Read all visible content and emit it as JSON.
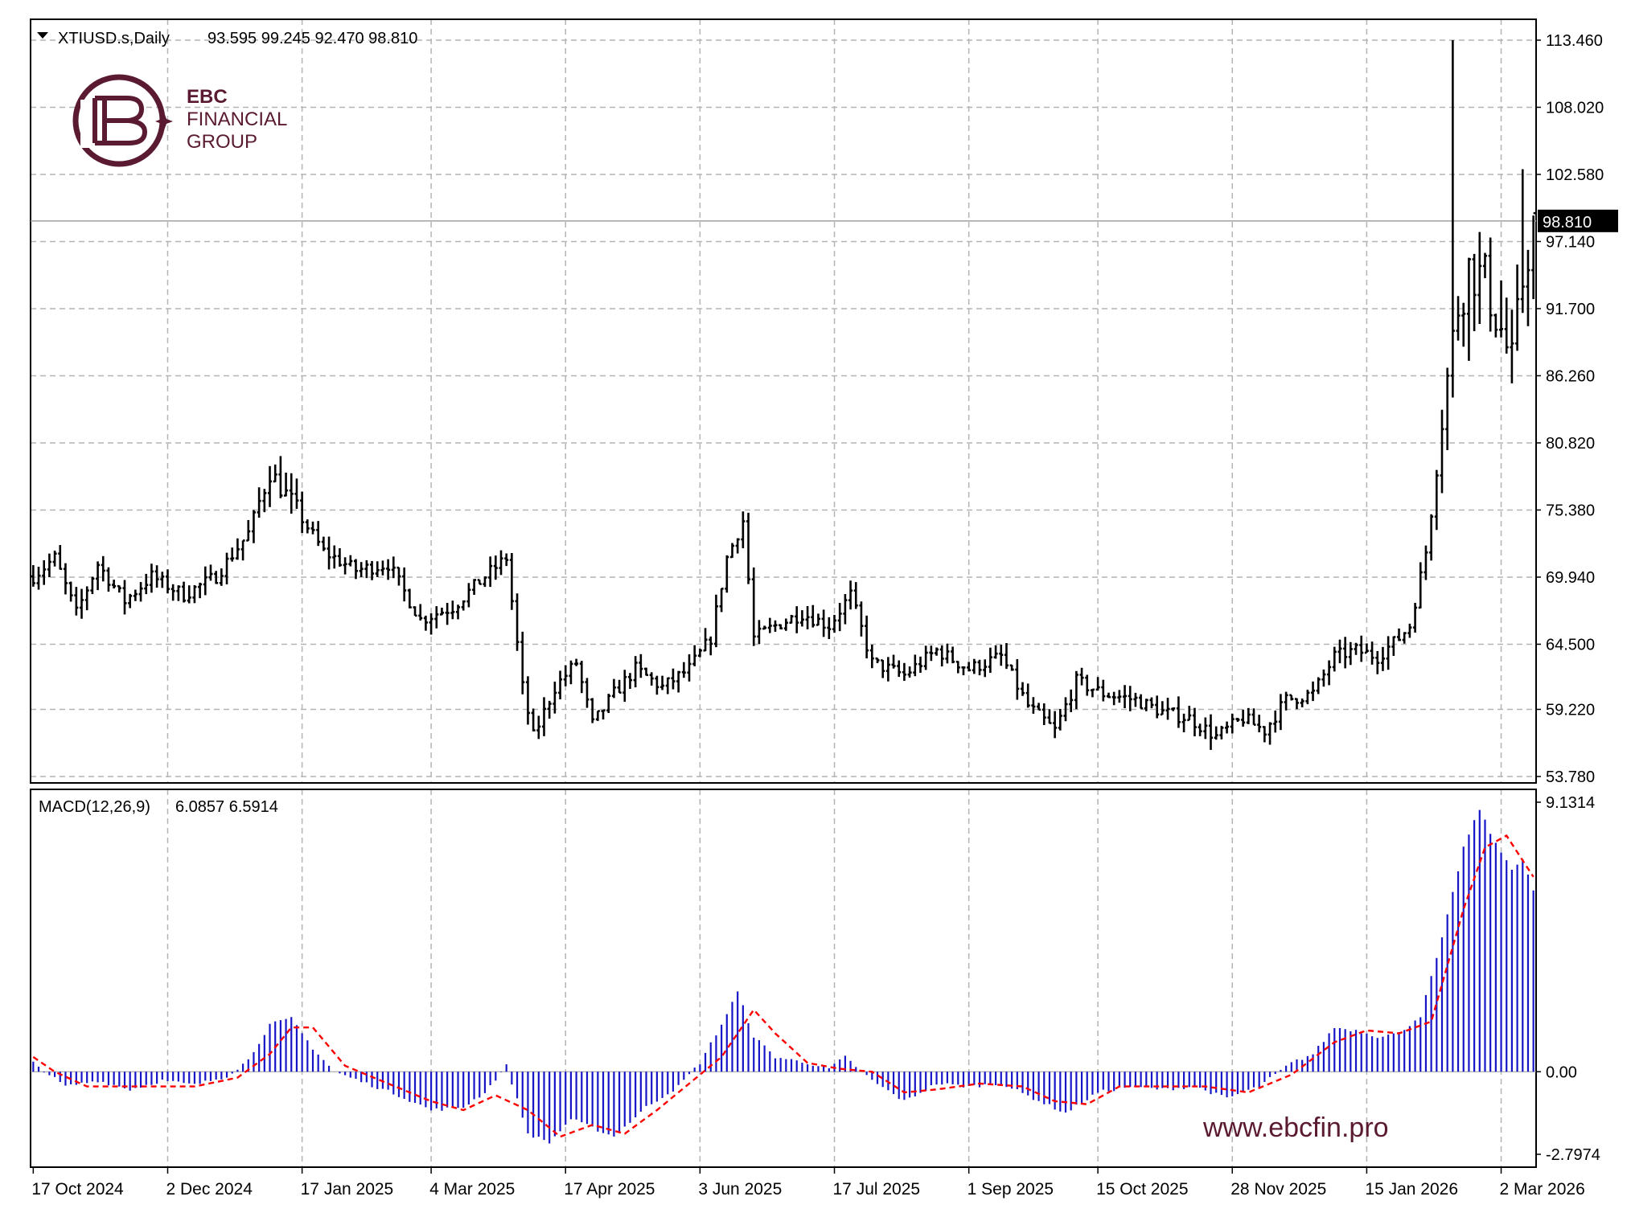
{
  "header": {
    "symbol": "XTIUSD.s,Daily",
    "ohlc": "93.595 99.245 92.470 98.810"
  },
  "indicator": {
    "label": "MACD(12,26,9)",
    "values": "6.0857 6.5914",
    "macd": 6.0857,
    "signal": 6.5914
  },
  "branding": {
    "line1": "EBC",
    "line2": "FINANCIAL",
    "line3": "GROUP",
    "website": "www.ebcfin.pro"
  },
  "colors": {
    "histogram": "#1515c8",
    "signal": "#ff0000",
    "bars": "#000000",
    "grid": "#b4b4b4",
    "brand": "#5a1a31",
    "last_price_tag": "#000000"
  },
  "chart_data": [
    {
      "type": "ohlc",
      "title": "XTIUSD.s,Daily",
      "ylim": [
        53.78,
        114.5
      ],
      "y_ticks": [
        "113.460",
        "108.020",
        "102.580",
        "97.140",
        "91.700",
        "86.260",
        "80.820",
        "75.380",
        "69.940",
        "64.500",
        "59.220",
        "53.780"
      ],
      "last_price": 98.81,
      "last_price_label": "98.810",
      "x_ticks": [
        "17 Oct 2024",
        "2 Dec 2024",
        "17 Jan 2025",
        "4 Mar 2025",
        "17 Apr 2025",
        "3 Jun 2025",
        "17 Jul 2025",
        "1 Sep 2025",
        "15 Oct 2025",
        "28 Nov 2025",
        "15 Jan 2026",
        "2 Mar 2026"
      ],
      "grid": true,
      "close_anchors": [
        [
          0,
          70.0
        ],
        [
          4,
          71.5
        ],
        [
          8,
          67.0
        ],
        [
          12,
          71.0
        ],
        [
          17,
          68.0
        ],
        [
          22,
          70.0
        ],
        [
          28,
          68.5
        ],
        [
          34,
          70.0
        ],
        [
          40,
          73.5
        ],
        [
          44,
          78.5
        ],
        [
          48,
          76.0
        ],
        [
          54,
          72.0
        ],
        [
          60,
          70.5
        ],
        [
          66,
          71.0
        ],
        [
          72,
          66.5
        ],
        [
          78,
          67.5
        ],
        [
          84,
          70.0
        ],
        [
          88,
          71.5
        ],
        [
          91,
          61.0
        ],
        [
          93,
          57.0
        ],
        [
          97,
          61.0
        ],
        [
          101,
          63.0
        ],
        [
          104,
          58.0
        ],
        [
          108,
          60.5
        ],
        [
          112,
          62.5
        ],
        [
          117,
          61.0
        ],
        [
          122,
          62.5
        ],
        [
          126,
          65.0
        ],
        [
          129,
          71.5
        ],
        [
          132,
          74.5
        ],
        [
          134,
          65.0
        ],
        [
          138,
          66.0
        ],
        [
          143,
          67.0
        ],
        [
          148,
          66.0
        ],
        [
          152,
          68.5
        ],
        [
          156,
          63.0
        ],
        [
          162,
          62.0
        ],
        [
          168,
          64.0
        ],
        [
          174,
          62.5
        ],
        [
          180,
          63.5
        ],
        [
          185,
          59.5
        ],
        [
          190,
          57.5
        ],
        [
          194,
          61.5
        ],
        [
          199,
          60.5
        ],
        [
          205,
          60.0
        ],
        [
          210,
          59.0
        ],
        [
          215,
          58.5
        ],
        [
          220,
          57.0
        ],
        [
          225,
          58.5
        ],
        [
          229,
          57.5
        ],
        [
          233,
          60.0
        ],
        [
          238,
          60.5
        ],
        [
          242,
          63.5
        ],
        [
          246,
          64.0
        ],
        [
          250,
          63.5
        ],
        [
          254,
          65.0
        ],
        [
          256,
          66.0
        ],
        [
          257,
          68.0
        ],
        [
          259,
          72.0
        ],
        [
          261,
          79.0
        ],
        [
          263,
          86.0
        ],
        [
          265,
          92.0
        ],
        [
          267,
          95.0
        ],
        [
          270,
          94.0
        ],
        [
          273,
          90.0
        ],
        [
          275,
          87.0
        ],
        [
          277,
          94.0
        ],
        [
          279,
          98.8
        ]
      ],
      "spikes": [
        {
          "bar": 264,
          "high": 113.46
        },
        {
          "bar": 277,
          "high": 103.0
        }
      ]
    },
    {
      "type": "bar",
      "title": "MACD(12,26,9)",
      "ylim": [
        -2.7974,
        9.1314
      ],
      "y_ticks": [
        "9.1314",
        "0.00",
        "-2.7974"
      ],
      "series": [
        {
          "name": "MACD",
          "kind": "histogram",
          "anchors": [
            [
              0,
              0.3
            ],
            [
              6,
              -0.5
            ],
            [
              12,
              -0.3
            ],
            [
              18,
              -0.6
            ],
            [
              24,
              -0.3
            ],
            [
              30,
              -0.45
            ],
            [
              36,
              -0.15
            ],
            [
              40,
              0.4
            ],
            [
              44,
              1.6
            ],
            [
              48,
              1.8
            ],
            [
              52,
              0.8
            ],
            [
              56,
              0.0
            ],
            [
              62,
              -0.4
            ],
            [
              68,
              -0.8
            ],
            [
              74,
              -1.3
            ],
            [
              80,
              -1.2
            ],
            [
              84,
              -0.7
            ],
            [
              88,
              0.2
            ],
            [
              92,
              -2.1
            ],
            [
              96,
              -2.4
            ],
            [
              100,
              -1.6
            ],
            [
              104,
              -1.9
            ],
            [
              108,
              -2.2
            ],
            [
              114,
              -1.2
            ],
            [
              120,
              -0.5
            ],
            [
              124,
              0.3
            ],
            [
              128,
              1.6
            ],
            [
              131,
              2.7
            ],
            [
              134,
              1.2
            ],
            [
              138,
              0.5
            ],
            [
              144,
              0.3
            ],
            [
              148,
              0.1
            ],
            [
              151,
              0.5
            ],
            [
              156,
              -0.3
            ],
            [
              162,
              -1.0
            ],
            [
              168,
              -0.4
            ],
            [
              174,
              -0.5
            ],
            [
              180,
              -0.4
            ],
            [
              186,
              -0.9
            ],
            [
              192,
              -1.4
            ],
            [
              198,
              -0.7
            ],
            [
              204,
              -0.5
            ],
            [
              210,
              -0.6
            ],
            [
              216,
              -0.5
            ],
            [
              222,
              -0.9
            ],
            [
              228,
              -0.5
            ],
            [
              234,
              0.3
            ],
            [
              238,
              0.6
            ],
            [
              242,
              1.5
            ],
            [
              246,
              1.4
            ],
            [
              250,
              1.2
            ],
            [
              254,
              1.3
            ],
            [
              258,
              1.9
            ],
            [
              262,
              4.5
            ],
            [
              266,
              7.6
            ],
            [
              269,
              8.9
            ],
            [
              272,
              7.7
            ],
            [
              275,
              6.9
            ],
            [
              277,
              7.2
            ],
            [
              279,
              6.1
            ]
          ]
        },
        {
          "name": "Signal",
          "kind": "dashed-line",
          "anchors": [
            [
              0,
              0.5
            ],
            [
              4,
              0.0
            ],
            [
              10,
              -0.5
            ],
            [
              20,
              -0.5
            ],
            [
              30,
              -0.5
            ],
            [
              38,
              -0.2
            ],
            [
              44,
              0.6
            ],
            [
              48,
              1.5
            ],
            [
              52,
              1.5
            ],
            [
              58,
              0.2
            ],
            [
              66,
              -0.4
            ],
            [
              74,
              -1.0
            ],
            [
              80,
              -1.3
            ],
            [
              86,
              -0.8
            ],
            [
              92,
              -1.3
            ],
            [
              98,
              -2.2
            ],
            [
              104,
              -1.8
            ],
            [
              110,
              -2.1
            ],
            [
              116,
              -1.3
            ],
            [
              122,
              -0.4
            ],
            [
              128,
              0.5
            ],
            [
              134,
              2.1
            ],
            [
              138,
              1.3
            ],
            [
              144,
              0.3
            ],
            [
              150,
              0.1
            ],
            [
              156,
              0.0
            ],
            [
              162,
              -0.7
            ],
            [
              168,
              -0.6
            ],
            [
              176,
              -0.4
            ],
            [
              184,
              -0.5
            ],
            [
              190,
              -1.0
            ],
            [
              196,
              -1.1
            ],
            [
              202,
              -0.5
            ],
            [
              210,
              -0.5
            ],
            [
              218,
              -0.5
            ],
            [
              226,
              -0.7
            ],
            [
              234,
              -0.1
            ],
            [
              242,
              1.0
            ],
            [
              248,
              1.4
            ],
            [
              254,
              1.3
            ],
            [
              260,
              1.7
            ],
            [
              266,
              5.5
            ],
            [
              270,
              7.6
            ],
            [
              274,
              8.0
            ],
            [
              279,
              6.6
            ]
          ]
        }
      ]
    }
  ]
}
